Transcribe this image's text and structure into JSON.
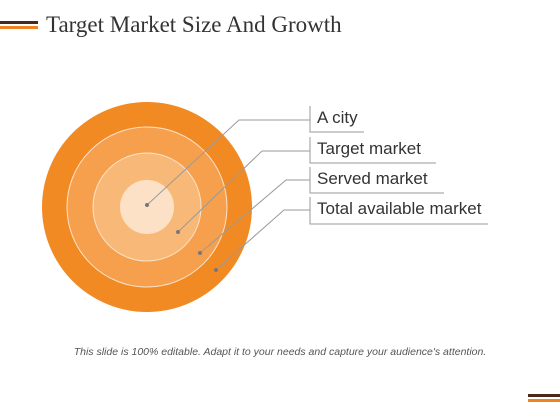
{
  "slide": {
    "title": "Target Market Size And Growth",
    "footer": "This slide is 100% editable. Adapt it to your needs and capture your audience's attention."
  },
  "colors": {
    "accent_dark": "#4a2a17",
    "accent_orange": "#f0831f",
    "ring_outer": "#f28a23",
    "ring_2": "#f6a04e",
    "ring_3": "#f8b978",
    "ring_inner": "#fde1c6",
    "ring_stroke": "#fbe3cc",
    "leader_line": "#9a9a9a"
  },
  "rings": [
    {
      "label": "A city"
    },
    {
      "label": "Target market"
    },
    {
      "label": "Served market"
    },
    {
      "label": "Total available market"
    }
  ]
}
